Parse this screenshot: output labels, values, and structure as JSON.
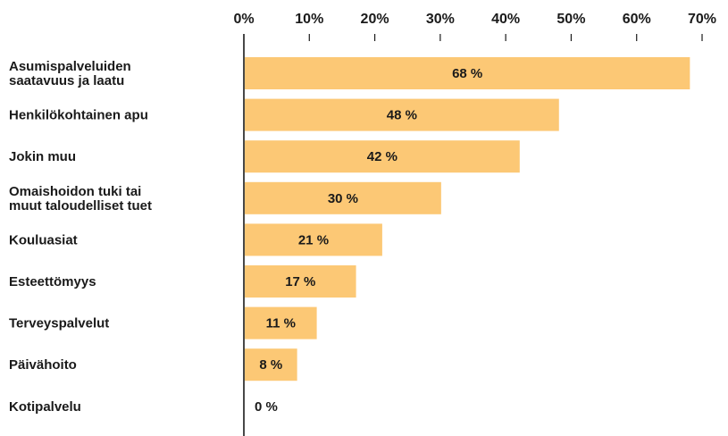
{
  "chart_data": {
    "type": "bar",
    "orientation": "horizontal",
    "title": "",
    "xlabel": "",
    "ylabel": "",
    "xlim": [
      0,
      70
    ],
    "xticks": [
      0,
      10,
      20,
      30,
      40,
      50,
      60,
      70
    ],
    "tick_labels": [
      "0%",
      "10%",
      "20%",
      "30%",
      "40%",
      "50%",
      "60%",
      "70%"
    ],
    "axis_position": "top",
    "grid": false,
    "bar_color": "#fcc875",
    "categories": [
      [
        "Asumispalveluiden",
        "saatavuus ja laatu"
      ],
      [
        "Henkilökohtainen apu"
      ],
      [
        "Jokin muu"
      ],
      [
        "Omaishoidon tuki tai",
        "muut taloudelliset tuet"
      ],
      [
        "Kouluasiat"
      ],
      [
        "Esteettömyys"
      ],
      [
        "Terveyspalvelut"
      ],
      [
        "Päivähoito"
      ],
      [
        "Kotipalvelu"
      ]
    ],
    "values": [
      68,
      48,
      42,
      30,
      21,
      17,
      11,
      8,
      0
    ],
    "data_labels": [
      "68 %",
      "48 %",
      "42 %",
      "30 %",
      "21 %",
      "17 %",
      "11 %",
      "8 %",
      "0 %"
    ]
  }
}
